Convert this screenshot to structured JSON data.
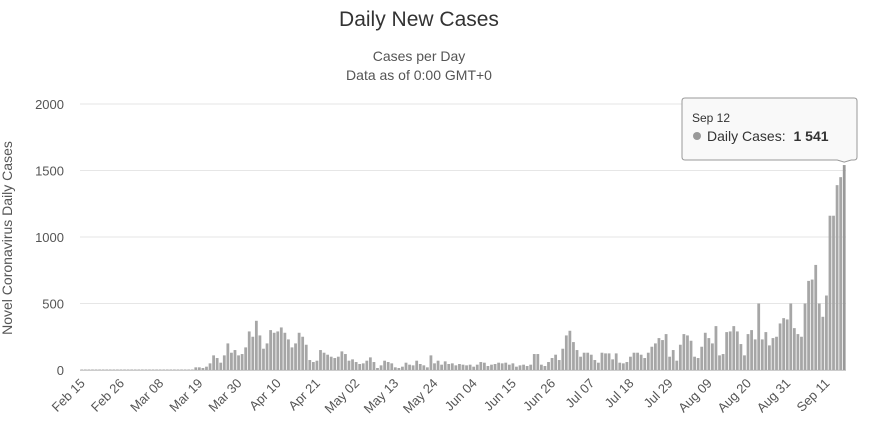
{
  "chart_data": {
    "type": "bar",
    "title": "Daily New Cases",
    "subtitle_lines": [
      "Cases per Day",
      "Data as of 0:00 GMT+0"
    ],
    "ylabel": "Novel Coronavirus Daily Cases",
    "xlabel": "",
    "ylim": [
      0,
      2000
    ],
    "yticks": [
      0,
      500,
      1000,
      1500,
      2000
    ],
    "grid": true,
    "bar_color": "#a6a6a6",
    "highlight_color": "#999999",
    "start_date": "Feb 15",
    "xtick_labels": [
      "Feb 15",
      "Feb 26",
      "Mar 08",
      "Mar 19",
      "Mar 30",
      "Apr 10",
      "Apr 21",
      "May 02",
      "May 13",
      "May 24",
      "Jun 04",
      "Jun 15",
      "Jun 26",
      "Jul 07",
      "Jul 18",
      "Jul 29",
      "Aug 09",
      "Aug 20",
      "Aug 31",
      "Sep 11"
    ],
    "xtick_interval_days": 11,
    "series": [
      {
        "name": "Daily Cases",
        "values": [
          0,
          0,
          0,
          0,
          0,
          0,
          0,
          0,
          0,
          0,
          0,
          0,
          0,
          0,
          0,
          0,
          0,
          0,
          0,
          0,
          0,
          0,
          0,
          0,
          0,
          0,
          0,
          0,
          0,
          0,
          0,
          0,
          20,
          20,
          15,
          25,
          50,
          110,
          90,
          55,
          110,
          200,
          130,
          150,
          110,
          120,
          170,
          290,
          250,
          370,
          260,
          160,
          200,
          300,
          280,
          290,
          320,
          280,
          230,
          170,
          200,
          280,
          250,
          190,
          75,
          60,
          70,
          150,
          130,
          115,
          100,
          90,
          100,
          140,
          120,
          70,
          80,
          60,
          45,
          50,
          70,
          95,
          60,
          15,
          35,
          70,
          60,
          50,
          20,
          15,
          25,
          55,
          40,
          35,
          70,
          45,
          35,
          20,
          110,
          50,
          70,
          40,
          65,
          45,
          50,
          35,
          45,
          40,
          35,
          40,
          25,
          40,
          60,
          55,
          30,
          40,
          45,
          55,
          50,
          55,
          40,
          50,
          25,
          35,
          40,
          30,
          40,
          120,
          120,
          40,
          30,
          60,
          90,
          115,
          75,
          160,
          260,
          295,
          210,
          150,
          100,
          130,
          130,
          115,
          75,
          55,
          130,
          125,
          125,
          80,
          125,
          55,
          50,
          60,
          100,
          130,
          130,
          115,
          90,
          130,
          175,
          200,
          240,
          225,
          270,
          100,
          150,
          70,
          190,
          270,
          260,
          220,
          100,
          90,
          175,
          280,
          240,
          200,
          330,
          110,
          120,
          285,
          290,
          330,
          290,
          195,
          110,
          270,
          300,
          230,
          500,
          230,
          285,
          185,
          240,
          250,
          350,
          390,
          380,
          500,
          315,
          270,
          250,
          500,
          670,
          680,
          790,
          500,
          400,
          560,
          1160,
          1160,
          1390,
          1450,
          1541
        ]
      }
    ],
    "tooltip": {
      "date": "Sep 12",
      "series_label": "Daily Cases:",
      "value_text": "1 541"
    }
  }
}
